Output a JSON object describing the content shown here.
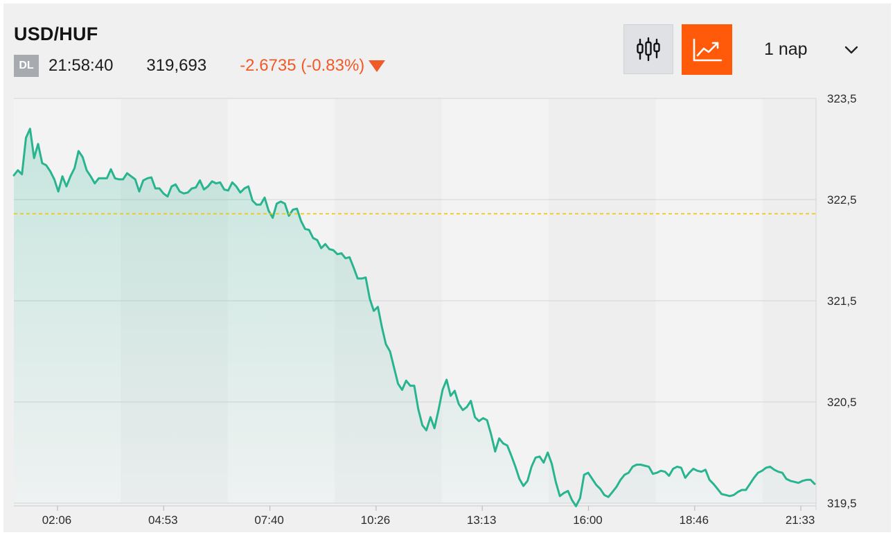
{
  "header": {
    "symbol": "USD/HUF",
    "badge": "DL",
    "time": "21:58:40",
    "price": "319,693",
    "change": "-2.6735 (-0.83%)"
  },
  "controls": {
    "candlestick_icon": "candlestick-icon",
    "line_icon": "line-chart-icon",
    "period_label": "1 nap",
    "dropdown_icon": "chevron-down-icon"
  },
  "colors": {
    "line": "#27b48e",
    "area": "#27b48e",
    "change_negative": "#f05a28",
    "active_button": "#ff5a0a",
    "reference_line": "#f5c400"
  },
  "chart_data": {
    "type": "area",
    "ylim": [
      319.5,
      323.5
    ],
    "y_ticks": [
      "323,5",
      "322,5",
      "321,5",
      "320,5",
      "319,5"
    ],
    "y_tick_values": [
      323.5,
      322.5,
      321.5,
      320.5,
      319.5
    ],
    "x_labels": [
      "02:06",
      "04:53",
      "07:40",
      "10:26",
      "13:13",
      "16:00",
      "18:46",
      "21:33"
    ],
    "reference_line": 322.36,
    "grid": true,
    "series": [
      {
        "values": [
          322.74,
          322.79,
          322.75,
          323.11,
          323.2,
          322.91,
          323.05,
          322.86,
          322.84,
          322.78,
          322.7,
          322.58,
          322.73,
          322.63,
          322.73,
          322.81,
          322.98,
          322.92,
          322.79,
          322.73,
          322.66,
          322.71,
          322.71,
          322.71,
          322.8,
          322.71,
          322.7,
          322.7,
          322.76,
          322.73,
          322.7,
          322.58,
          322.69,
          322.71,
          322.72,
          322.61,
          322.61,
          322.56,
          322.53,
          322.63,
          322.65,
          322.58,
          322.56,
          322.57,
          322.61,
          322.62,
          322.69,
          322.6,
          322.63,
          322.68,
          322.66,
          322.67,
          322.6,
          322.59,
          322.67,
          322.63,
          322.57,
          322.61,
          322.63,
          322.49,
          322.45,
          322.45,
          322.52,
          322.39,
          322.32,
          322.46,
          322.48,
          322.46,
          322.34,
          322.4,
          322.41,
          322.29,
          322.21,
          322.2,
          322.12,
          322.1,
          322.02,
          322.06,
          322.01,
          322.0,
          321.96,
          321.97,
          321.92,
          321.93,
          321.83,
          321.72,
          321.72,
          321.73,
          321.52,
          321.4,
          321.44,
          321.24,
          321.07,
          321.0,
          320.84,
          320.68,
          320.62,
          320.71,
          320.66,
          320.66,
          320.43,
          320.27,
          320.22,
          320.35,
          320.24,
          320.42,
          320.62,
          320.72,
          320.56,
          320.61,
          320.48,
          320.42,
          320.45,
          320.51,
          320.35,
          320.31,
          320.34,
          320.32,
          320.18,
          320.01,
          320.14,
          320.09,
          320.07,
          319.97,
          319.86,
          319.74,
          319.67,
          319.72,
          319.86,
          319.95,
          319.96,
          319.9,
          320.0,
          319.89,
          319.71,
          319.57,
          319.6,
          319.62,
          319.53,
          319.47,
          319.55,
          319.78,
          319.8,
          319.74,
          319.68,
          319.64,
          319.58,
          319.56,
          319.61,
          319.66,
          319.73,
          319.78,
          319.8,
          319.86,
          319.88,
          319.88,
          319.87,
          319.86,
          319.79,
          319.8,
          319.82,
          319.81,
          319.77,
          319.84,
          319.86,
          319.85,
          319.75,
          319.8,
          319.84,
          319.82,
          319.81,
          319.83,
          319.73,
          319.69,
          319.64,
          319.59,
          319.58,
          319.57,
          319.58,
          319.61,
          319.63,
          319.63,
          319.69,
          319.75,
          319.8,
          319.82,
          319.85,
          319.86,
          319.83,
          319.81,
          319.8,
          319.74,
          319.72,
          319.71,
          319.7,
          319.72,
          319.73,
          319.73,
          319.69
        ]
      }
    ]
  }
}
